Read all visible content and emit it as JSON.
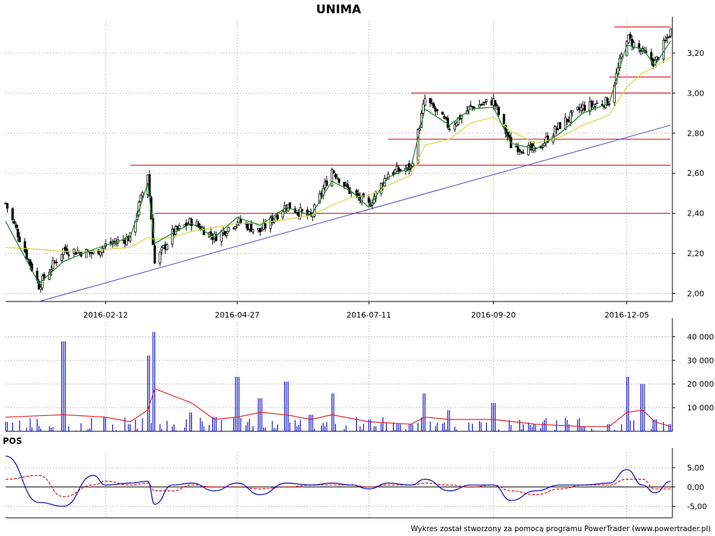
{
  "chart_data": {
    "type": "candlestick",
    "title": "UNIMA",
    "footer": "Wykres został stworzony za pomocą programu PowerTrader (www.powertrader.pl)",
    "colors": {
      "grid": "#9a9a9a",
      "ma_short": "#1f8a2a",
      "ma_long": "#d8d84a",
      "support": "#e02020",
      "trend": "#4040d0",
      "volume": "#1010c0",
      "volume_ma": "#e02020",
      "pos_line": "#1010c0",
      "pos_signal": "#e02020"
    },
    "price": {
      "y_ticks": [
        "2,00",
        "2,20",
        "2,40",
        "2,60",
        "2,80",
        "3,00",
        "3,20"
      ],
      "ylim": [
        1.96,
        3.36
      ],
      "x_ticks": [
        "2016-02-12",
        "2016-04-27",
        "2016-07-11",
        "2016-09-20",
        "2016-12-05"
      ],
      "horizontal_lines": [
        {
          "value": 2.4,
          "from": "2016-03-11",
          "to": "2016-12-30"
        },
        {
          "value": 2.64,
          "from": "2016-02-26",
          "to": "2016-12-30"
        },
        {
          "value": 2.77,
          "from": "2016-07-22",
          "to": "2016-12-30"
        },
        {
          "value": 3.0,
          "from": "2016-08-04",
          "to": "2016-12-30"
        },
        {
          "value": 3.08,
          "from": "2016-11-25",
          "to": "2016-12-30"
        },
        {
          "value": 3.33,
          "from": "2016-11-28",
          "to": "2016-12-30"
        }
      ],
      "trendline": {
        "x1": "2016-01-05",
        "y1": 1.96,
        "x2": "2016-12-30",
        "y2": 2.84
      }
    },
    "series": [
      {
        "name": "price",
        "x": [
          "2015-12-17",
          "2016-01-05",
          "2016-01-19",
          "2016-02-05",
          "2016-02-12",
          "2016-02-26",
          "2016-03-07",
          "2016-03-11",
          "2016-03-21",
          "2016-04-01",
          "2016-04-14",
          "2016-04-27",
          "2016-05-10",
          "2016-05-25",
          "2016-06-08",
          "2016-06-20",
          "2016-07-01",
          "2016-07-11",
          "2016-07-22",
          "2016-08-04",
          "2016-08-12",
          "2016-08-26",
          "2016-09-07",
          "2016-09-20",
          "2016-09-30",
          "2016-10-14",
          "2016-10-28",
          "2016-11-10",
          "2016-11-25",
          "2016-12-05",
          "2016-12-14",
          "2016-12-21",
          "2016-12-30"
        ],
        "close": [
          2.45,
          2.04,
          2.22,
          2.2,
          2.24,
          2.28,
          2.6,
          2.15,
          2.3,
          2.36,
          2.28,
          2.36,
          2.31,
          2.44,
          2.38,
          2.62,
          2.5,
          2.44,
          2.6,
          2.63,
          2.97,
          2.83,
          2.93,
          2.96,
          2.74,
          2.71,
          2.84,
          2.93,
          2.96,
          3.28,
          3.2,
          3.15,
          3.31
        ]
      },
      {
        "name": "ma_short",
        "values": [
          2.36,
          2.05,
          2.16,
          2.22,
          2.24,
          2.28,
          2.55,
          2.25,
          2.3,
          2.35,
          2.28,
          2.38,
          2.34,
          2.43,
          2.39,
          2.56,
          2.51,
          2.43,
          2.58,
          2.63,
          2.92,
          2.84,
          2.92,
          2.93,
          2.75,
          2.72,
          2.8,
          2.9,
          2.95,
          3.24,
          3.22,
          3.14,
          3.26
        ]
      },
      {
        "name": "ma_long",
        "values": [
          2.23,
          2.22,
          2.21,
          2.21,
          2.22,
          2.23,
          2.28,
          2.27,
          2.28,
          2.31,
          2.33,
          2.35,
          2.35,
          2.37,
          2.39,
          2.44,
          2.48,
          2.49,
          2.54,
          2.59,
          2.74,
          2.77,
          2.85,
          2.88,
          2.81,
          2.75,
          2.78,
          2.84,
          2.89,
          3.03,
          3.1,
          3.13,
          3.18
        ]
      },
      {
        "name": "volume",
        "x": [
          "2015-12-17",
          "2016-01-19",
          "2016-02-12",
          "2016-02-26",
          "2016-03-07",
          "2016-03-11",
          "2016-04-01",
          "2016-04-14",
          "2016-04-27",
          "2016-05-10",
          "2016-05-25",
          "2016-06-08",
          "2016-06-20",
          "2016-07-11",
          "2016-08-04",
          "2016-08-12",
          "2016-08-26",
          "2016-09-20",
          "2016-10-14",
          "2016-11-10",
          "2016-11-25",
          "2016-12-05",
          "2016-12-14",
          "2016-12-21",
          "2016-12-30"
        ],
        "values": [
          4000,
          38000,
          6000,
          3000,
          32000,
          42000,
          8000,
          6000,
          23000,
          14000,
          21000,
          7000,
          16000,
          5000,
          3000,
          16000,
          9000,
          12000,
          3000,
          2000,
          3000,
          23000,
          20000,
          5000,
          3000
        ],
        "y_ticks": [
          "10 000",
          "20 000",
          "30 000",
          "40 000"
        ],
        "ylim": [
          0,
          46000
        ]
      },
      {
        "name": "volume_ma",
        "values": [
          6000,
          7000,
          6000,
          4000,
          9000,
          18000,
          12000,
          5000,
          6000,
          8000,
          7000,
          5000,
          7000,
          4000,
          3000,
          6000,
          5000,
          5000,
          3000,
          2000,
          2000,
          8000,
          9000,
          4000,
          2000
        ]
      },
      {
        "name": "pos",
        "x": [
          "2015-12-17",
          "2016-01-05",
          "2016-01-19",
          "2016-02-05",
          "2016-02-12",
          "2016-02-26",
          "2016-03-07",
          "2016-03-11",
          "2016-03-21",
          "2016-04-01",
          "2016-04-14",
          "2016-04-27",
          "2016-05-10",
          "2016-05-25",
          "2016-06-08",
          "2016-06-20",
          "2016-07-01",
          "2016-07-11",
          "2016-07-22",
          "2016-08-04",
          "2016-08-12",
          "2016-08-26",
          "2016-09-07",
          "2016-09-20",
          "2016-09-30",
          "2016-10-14",
          "2016-10-28",
          "2016-11-10",
          "2016-11-25",
          "2016-12-05",
          "2016-12-14",
          "2016-12-21",
          "2016-12-30"
        ],
        "values": [
          8.0,
          -4.0,
          -5.0,
          3.0,
          0.5,
          1.0,
          1.5,
          -4.5,
          0.5,
          1.0,
          -1.0,
          1.0,
          -2.0,
          1.0,
          0.5,
          1.0,
          0.5,
          -0.5,
          1.0,
          0.5,
          2.0,
          -1.0,
          0.5,
          0.5,
          -3.5,
          -1.0,
          0.5,
          0.5,
          1.0,
          4.5,
          0.5,
          -1.5,
          1.5
        ],
        "y_ticks": [
          "-5,00",
          "0,00",
          "5,00"
        ],
        "ylim": [
          -8.0,
          9.0
        ]
      },
      {
        "name": "pos_signal",
        "values": [
          2.0,
          3.0,
          -2.5,
          0.5,
          1.5,
          0.5,
          1.0,
          -1.0,
          -1.0,
          0.5,
          0.0,
          0.0,
          -0.5,
          0.0,
          0.5,
          0.5,
          0.5,
          0.0,
          0.5,
          0.5,
          1.0,
          0.5,
          0.0,
          0.5,
          -1.0,
          -2.0,
          -0.5,
          0.5,
          0.5,
          2.0,
          2.0,
          -0.5,
          -0.5
        ]
      }
    ],
    "pos_panel_title": "POS"
  }
}
